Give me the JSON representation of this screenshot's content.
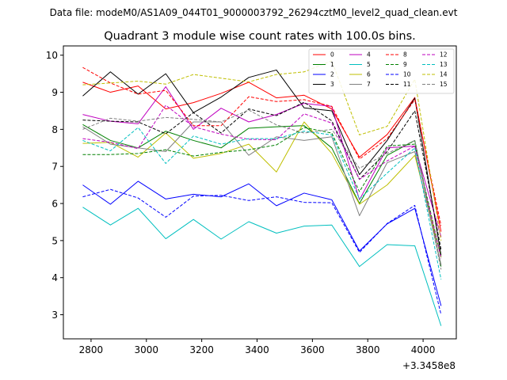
{
  "suptitle": "Data file: modeM0/AS1A09_044T01_9000003792_26294cztM0_level2_quad_clean.evt",
  "chart_data": {
    "type": "line",
    "title": "Quadrant 3 module wise count rates with 100.0s bins.",
    "x_offset_label": "+3.3458e8",
    "x": [
      2770,
      2870,
      2970,
      3070,
      3170,
      3270,
      3370,
      3470,
      3570,
      3670,
      3770,
      3870,
      3970,
      4065
    ],
    "xlim": [
      2700,
      4120
    ],
    "ylim": [
      2.35,
      10.25
    ],
    "xticks": [
      2800,
      3000,
      3200,
      3400,
      3600,
      3800,
      4000
    ],
    "yticks": [
      3,
      4,
      5,
      6,
      7,
      8,
      9,
      10
    ],
    "legend_position": "top-right",
    "series": [
      {
        "name": "0",
        "color": "#ff0000",
        "dash": "solid",
        "values": [
          9.27,
          9.0,
          9.17,
          8.55,
          8.72,
          8.97,
          9.27,
          8.85,
          8.92,
          8.55,
          7.25,
          7.86,
          8.86,
          5.24
        ]
      },
      {
        "name": "1",
        "color": "#008000",
        "dash": "solid",
        "values": [
          8.13,
          7.7,
          7.5,
          7.95,
          7.7,
          7.5,
          8.03,
          8.07,
          8.1,
          7.5,
          6.0,
          7.3,
          7.7,
          4.3
        ]
      },
      {
        "name": "2",
        "color": "#0000ff",
        "dash": "solid",
        "values": [
          6.5,
          5.98,
          6.6,
          6.12,
          6.25,
          6.18,
          6.53,
          5.94,
          6.28,
          6.1,
          4.72,
          5.45,
          5.87,
          3.24
        ]
      },
      {
        "name": "3",
        "color": "#000000",
        "dash": "solid",
        "values": [
          8.9,
          9.55,
          8.95,
          9.5,
          8.45,
          8.87,
          9.4,
          9.6,
          8.58,
          8.5,
          6.78,
          7.7,
          8.84,
          4.6
        ]
      },
      {
        "name": "4",
        "color": "#bf00bf",
        "dash": "solid",
        "values": [
          8.4,
          8.22,
          8.15,
          9.15,
          8.0,
          8.57,
          8.2,
          8.4,
          8.7,
          8.62,
          6.1,
          7.5,
          7.55,
          5.1
        ]
      },
      {
        "name": "5",
        "color": "#00bfbf",
        "dash": "solid",
        "values": [
          5.9,
          5.42,
          5.87,
          5.05,
          5.57,
          5.04,
          5.51,
          5.2,
          5.39,
          5.42,
          4.3,
          4.89,
          4.86,
          2.7
        ]
      },
      {
        "name": "6",
        "color": "#bfbf00",
        "dash": "solid",
        "values": [
          7.62,
          7.65,
          7.25,
          7.9,
          7.22,
          7.35,
          7.6,
          6.85,
          8.2,
          7.35,
          5.98,
          6.5,
          7.3,
          4.55
        ]
      },
      {
        "name": "7",
        "color": "#808080",
        "dash": "solid",
        "values": [
          8.07,
          7.6,
          7.5,
          7.4,
          8.2,
          8.2,
          7.3,
          7.8,
          7.7,
          7.8,
          5.67,
          7.1,
          7.4,
          4.35
        ]
      },
      {
        "name": "8",
        "color": "#ff0000",
        "dash": "dashed",
        "values": [
          9.67,
          9.25,
          8.95,
          9.05,
          8.1,
          8.1,
          8.88,
          8.75,
          8.8,
          8.62,
          7.2,
          7.75,
          8.8,
          5.4
        ]
      },
      {
        "name": "9",
        "color": "#008000",
        "dash": "dashed",
        "values": [
          7.32,
          7.32,
          7.35,
          7.45,
          7.28,
          7.38,
          7.45,
          7.58,
          8.05,
          7.9,
          6.32,
          7.55,
          7.6,
          4.55
        ]
      },
      {
        "name": "10",
        "color": "#0000ff",
        "dash": "dashed",
        "values": [
          6.18,
          6.38,
          6.15,
          5.63,
          6.2,
          6.22,
          6.08,
          6.18,
          6.03,
          6.02,
          4.68,
          5.46,
          5.95,
          3.0
        ]
      },
      {
        "name": "11",
        "color": "#000000",
        "dash": "dashed",
        "values": [
          8.25,
          8.22,
          8.2,
          7.88,
          8.45,
          7.9,
          8.55,
          8.37,
          8.73,
          8.23,
          6.65,
          7.4,
          8.5,
          4.75
        ]
      },
      {
        "name": "12",
        "color": "#bf00bf",
        "dash": "dashed",
        "values": [
          7.75,
          7.65,
          7.48,
          8.65,
          8.07,
          7.87,
          7.73,
          7.72,
          8.42,
          8.17,
          6.65,
          7.15,
          7.55,
          4.52
        ]
      },
      {
        "name": "13",
        "color": "#00bfbf",
        "dash": "dashed",
        "values": [
          7.7,
          7.42,
          8.05,
          7.08,
          7.82,
          7.6,
          7.75,
          7.75,
          7.95,
          7.85,
          6.12,
          6.82,
          7.5,
          3.95
        ]
      },
      {
        "name": "14",
        "color": "#bfbf00",
        "dash": "dashed",
        "values": [
          9.2,
          9.25,
          9.3,
          9.22,
          9.48,
          9.38,
          9.28,
          9.48,
          9.55,
          9.85,
          7.85,
          8.08,
          9.35,
          5.0
        ]
      },
      {
        "name": "15",
        "color": "#808080",
        "dash": "dashed",
        "values": [
          8.0,
          8.3,
          8.22,
          8.32,
          8.27,
          8.2,
          8.52,
          8.12,
          7.9,
          8.0,
          6.95,
          7.35,
          7.7,
          4.22
        ]
      }
    ]
  }
}
